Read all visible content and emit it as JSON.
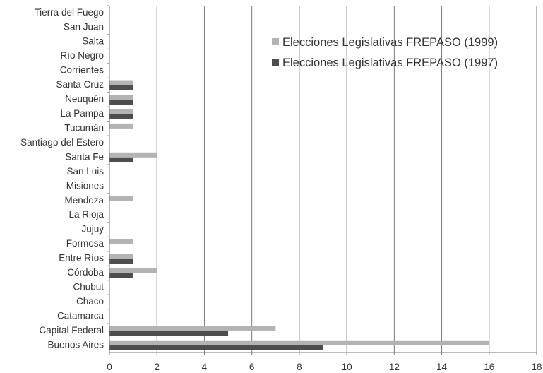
{
  "chart_data": {
    "type": "bar",
    "orientation": "horizontal",
    "categories": [
      "Buenos Aires",
      "Capital Federal",
      "Catamarca",
      "Chaco",
      "Chubut",
      "Córdoba",
      "Entre Ríos",
      "Formosa",
      "Jujuy",
      "La Rioja",
      "Mendoza",
      "Misiones",
      "San Luis",
      "Santa Fe",
      "Santiago del Estero",
      "Tucumán",
      "La Pampa",
      "Neuquén",
      "Santa Cruz",
      "Corrientes",
      "Río Negro",
      "Salta",
      "San Juan",
      "Tierra del Fuego"
    ],
    "series": [
      {
        "name": "Elecciones Legislativas FREPASO (1999)",
        "color": "#b3b3b3",
        "values": [
          16,
          7,
          0,
          0,
          0,
          2,
          1,
          1,
          0,
          0,
          1,
          0,
          0,
          2,
          0,
          1,
          1,
          1,
          1,
          0,
          0,
          0,
          0,
          0
        ]
      },
      {
        "name": "Elecciones Legislativas FREPASO (1997)",
        "color": "#4d4d4d",
        "values": [
          9,
          5,
          0,
          0,
          0,
          1,
          1,
          0,
          0,
          0,
          0,
          0,
          0,
          1,
          0,
          0,
          1,
          1,
          1,
          0,
          0,
          0,
          0,
          0
        ]
      }
    ],
    "x_ticks": [
      "0",
      "2",
      "4",
      "6",
      "8",
      "10",
      "12",
      "14",
      "16",
      "18"
    ],
    "xlim": [
      0,
      18
    ],
    "grid": "vertical",
    "legend_position": "top-right",
    "title": "",
    "xlabel": "",
    "ylabel": ""
  }
}
